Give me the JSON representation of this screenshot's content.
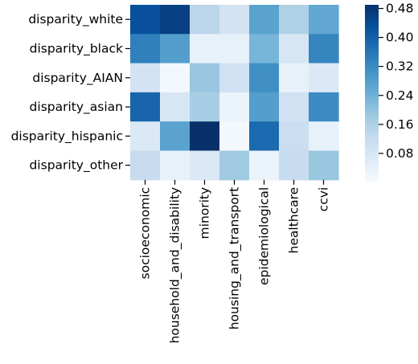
{
  "chart_data": {
    "type": "heatmap",
    "title": "",
    "xlabel": "",
    "ylabel": "",
    "x_categories": [
      "socioeconomic",
      "household_and_disability",
      "minority",
      "housing_and_transport",
      "epidemiological",
      "healthcare",
      "ccvi"
    ],
    "y_categories": [
      "disparity_white",
      "disparity_black",
      "disparity_AIAN",
      "disparity_asian",
      "disparity_hispanic",
      "disparity_other"
    ],
    "values": [
      [
        0.43,
        0.46,
        0.14,
        0.09,
        0.27,
        0.16,
        0.26
      ],
      [
        0.34,
        0.28,
        0.04,
        0.04,
        0.23,
        0.08,
        0.33
      ],
      [
        0.09,
        0.01,
        0.19,
        0.1,
        0.31,
        0.04,
        0.07
      ],
      [
        0.39,
        0.08,
        0.17,
        0.03,
        0.28,
        0.1,
        0.32
      ],
      [
        0.07,
        0.27,
        0.49,
        0.01,
        0.38,
        0.11,
        0.04
      ],
      [
        0.12,
        0.04,
        0.07,
        0.18,
        0.03,
        0.12,
        0.19
      ]
    ],
    "colormap": "Blues",
    "vmin": 0.0,
    "vmax": 0.49,
    "colorbar": {
      "ticks": [
        0.08,
        0.16,
        0.24,
        0.32,
        0.4,
        0.48
      ],
      "tick_labels": [
        "0.08",
        "0.16",
        "0.24",
        "0.32",
        "0.40",
        "0.48"
      ]
    }
  }
}
